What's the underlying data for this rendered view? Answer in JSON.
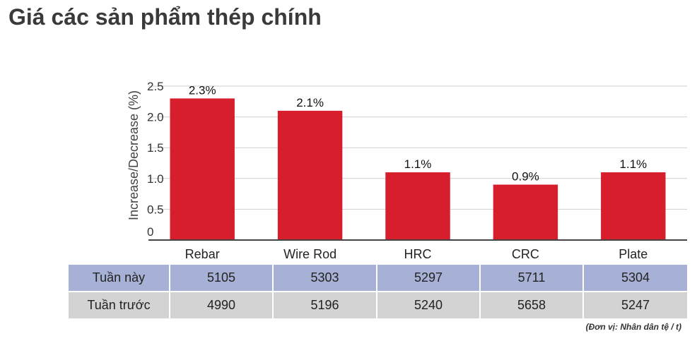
{
  "title": "Giá các sản phẩm thép chính",
  "chart_data": {
    "type": "bar",
    "categories": [
      "Rebar",
      "Wire Rod",
      "HRC",
      "CRC",
      "Plate"
    ],
    "values": [
      2.3,
      2.1,
      1.1,
      0.9,
      1.1
    ],
    "data_labels": [
      "2.3%",
      "2.1%",
      "1.1%",
      "0.9%",
      "1.1%"
    ],
    "ylabel": "Increase/Decrease (%)",
    "xlabel": "",
    "ylim": [
      0,
      2.5
    ],
    "yticks": [
      0,
      0.5,
      1.0,
      1.5,
      2.0,
      2.5
    ],
    "ytick_labels": [
      "0",
      "0.5",
      "1.0",
      "1.5",
      "2.0",
      "2.5"
    ],
    "grid": true,
    "bar_color": "#d71e2c"
  },
  "table": {
    "rows": [
      {
        "label": "Tuần này",
        "values": [
          "5105",
          "5303",
          "5297",
          "5711",
          "5304"
        ],
        "color": "#a7b1d6"
      },
      {
        "label": "Tuần trước",
        "values": [
          "4990",
          "5196",
          "5240",
          "5658",
          "5247"
        ],
        "color": "#d3d3d3"
      }
    ]
  },
  "footnote": "(Đơn vị: Nhân dân tệ / t)"
}
